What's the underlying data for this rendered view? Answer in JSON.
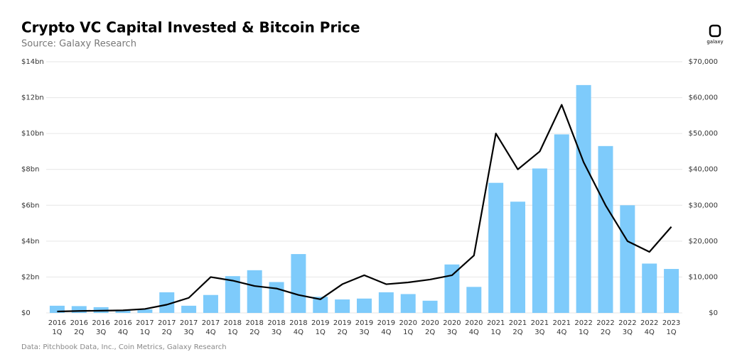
{
  "chart_data": {
    "type": "bar",
    "title": "Crypto VC Capital Invested & Bitcoin Price",
    "subtitle": "Source: Galaxy Research",
    "note": "Data: Pitchbook Data, Inc., Coin Metrics, Galaxy Research",
    "logo": "galaxy",
    "categories": [
      "2016 1Q",
      "2016 2Q",
      "2016 3Q",
      "2016 4Q",
      "2017 1Q",
      "2017 2Q",
      "2017 3Q",
      "2017 4Q",
      "2018 1Q",
      "2018 2Q",
      "2018 3Q",
      "2018 4Q",
      "2019 1Q",
      "2019 2Q",
      "2019 3Q",
      "2019 4Q",
      "2020 1Q",
      "2020 2Q",
      "2020 3Q",
      "2020 4Q",
      "2021 1Q",
      "2021 2Q",
      "2021 3Q",
      "2021 4Q",
      "2022 1Q",
      "2022 2Q",
      "2022 3Q",
      "2022 4Q",
      "2023 1Q"
    ],
    "series": [
      {
        "name": "Crypto VC Capital Invested",
        "type": "bar",
        "color": "#7ecbfb",
        "values": [
          0.4,
          0.38,
          0.32,
          0.15,
          0.2,
          1.15,
          0.4,
          1.0,
          2.05,
          2.38,
          1.72,
          3.28,
          0.9,
          0.75,
          0.8,
          1.15,
          1.05,
          0.68,
          2.7,
          1.45,
          7.25,
          6.2,
          8.05,
          9.95,
          12.7,
          9.3,
          6.0,
          2.75,
          2.45
        ]
      },
      {
        "name": "Bitcoin Price",
        "type": "line",
        "axis": "y2",
        "color": "#000000",
        "values": [
          400,
          550,
          620,
          720,
          1100,
          2300,
          4200,
          10000,
          9000,
          7500,
          6800,
          5000,
          3800,
          8000,
          10500,
          8000,
          8500,
          9300,
          10500,
          16000,
          50000,
          40000,
          45000,
          58000,
          42000,
          30000,
          20000,
          17000,
          24000
        ]
      }
    ],
    "ylim": [
      0,
      14
    ],
    "yticks": [
      {
        "value": 0,
        "label": "$0"
      },
      {
        "value": 2,
        "label": "$2bn"
      },
      {
        "value": 4,
        "label": "$4bn"
      },
      {
        "value": 6,
        "label": "$6bn"
      },
      {
        "value": 8,
        "label": "$8bn"
      },
      {
        "value": 10,
        "label": "$10bn"
      },
      {
        "value": 12,
        "label": "$12bn"
      },
      {
        "value": 14,
        "label": "$14bn"
      }
    ],
    "y2lim": [
      0,
      70000
    ],
    "y2ticks": [
      {
        "value": 0,
        "label": "$0"
      },
      {
        "value": 10000,
        "label": "$10,000"
      },
      {
        "value": 20000,
        "label": "$20,000"
      },
      {
        "value": 30000,
        "label": "$30,000"
      },
      {
        "value": 40000,
        "label": "$40,000"
      },
      {
        "value": 50000,
        "label": "$50,000"
      },
      {
        "value": 60000,
        "label": "$60,000"
      },
      {
        "value": 70000,
        "label": "$70,000"
      }
    ],
    "grid": true
  }
}
